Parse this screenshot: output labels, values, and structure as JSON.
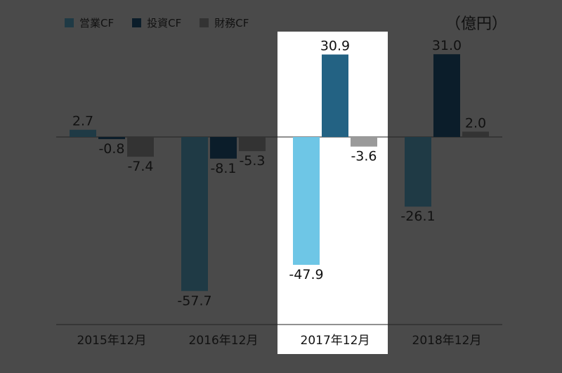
{
  "chart_data": {
    "type": "bar",
    "unit_label": "（億円）",
    "categories": [
      "2015年12月",
      "2016年12月",
      "2017年12月",
      "2018年12月"
    ],
    "series": [
      {
        "name": "営業CF",
        "values": [
          2.7,
          -57.7,
          -47.9,
          -26.1
        ]
      },
      {
        "name": "投資CF",
        "values": [
          -0.8,
          -8.1,
          30.9,
          31.0
        ]
      },
      {
        "name": "財務CF",
        "values": [
          -7.4,
          -5.3,
          -3.6,
          2.0
        ]
      }
    ],
    "data_labels": [
      [
        "2.7",
        "-0.8",
        "-7.4"
      ],
      [
        "-57.7",
        "-8.1",
        "-5.3"
      ],
      [
        "-47.9",
        "30.9",
        "-3.6"
      ],
      [
        "-26.1",
        "31.0",
        "2.0"
      ]
    ],
    "highlighted_category": "2017年12月",
    "ylim": [
      -60,
      40
    ],
    "grid": false,
    "legend_position": "top-left",
    "colors": {
      "background": "#4a4a4a",
      "series": [
        "#1f3a45",
        "#0b1d2a",
        "#333333"
      ],
      "highlight_series": [
        "#6ec6e6",
        "#236283",
        "#9a9a9a"
      ],
      "highlight_panel": "#ffffff",
      "axis": "#222222",
      "text": "#111111"
    }
  }
}
